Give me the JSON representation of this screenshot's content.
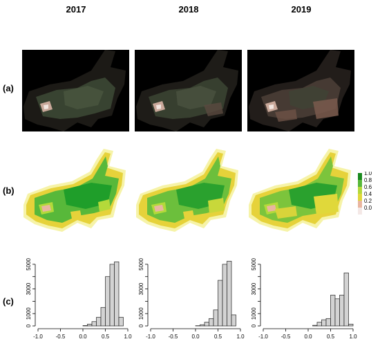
{
  "years": [
    "2017",
    "2018",
    "2019"
  ],
  "row_labels": {
    "a": "(a)",
    "b": "(b)",
    "c": "(c)"
  },
  "colors": {
    "rgb_dark": "#1c1a16",
    "rgb_veg": "#3c4834",
    "rgb_bare_2019": "#7a5a4e",
    "ndvi_high": "#1f9e2a",
    "ndvi_mid": "#9acd32",
    "ndvi_low": "#e6d23a",
    "ndvi_zero": "#e8c4b8",
    "hist_fill": "#d3d3d3"
  },
  "legend": {
    "labels": [
      "1.0",
      "0.8",
      "0.6",
      "0.4",
      "0.2",
      "0.0"
    ],
    "colors": [
      "#1a8a1e",
      "#58b83a",
      "#b4d93a",
      "#e0d83a",
      "#e9b6a0",
      "#f4e8e6"
    ]
  },
  "chart_data": [
    {
      "type": "bar",
      "year": "2017",
      "bin_edges": [
        0.0,
        0.1,
        0.2,
        0.3,
        0.4,
        0.5,
        0.6,
        0.7,
        0.8,
        0.9
      ],
      "values": [
        30,
        150,
        350,
        700,
        1500,
        4000,
        5000,
        5200,
        700
      ],
      "xlim": [
        -1.0,
        1.0
      ],
      "ylim": [
        0,
        5500
      ],
      "xticks": [
        "-1.0",
        "-0.5",
        "0.0",
        "0.5",
        "1.0"
      ],
      "yticks": [
        "0",
        "1000",
        "3000",
        "5000"
      ]
    },
    {
      "type": "bar",
      "year": "2018",
      "bin_edges": [
        0.0,
        0.1,
        0.2,
        0.3,
        0.4,
        0.5,
        0.6,
        0.7,
        0.8,
        0.9
      ],
      "values": [
        20,
        100,
        300,
        600,
        1300,
        3700,
        5000,
        5250,
        900
      ],
      "xlim": [
        -1.0,
        1.0
      ],
      "ylim": [
        0,
        5500
      ],
      "xticks": [
        "-1.0",
        "-0.5",
        "0.0",
        "0.5",
        "1.0"
      ],
      "yticks": [
        "0",
        "1000",
        "3000",
        "5000"
      ]
    },
    {
      "type": "bar",
      "year": "2019",
      "bin_edges": [
        0.1,
        0.2,
        0.3,
        0.4,
        0.5,
        0.6,
        0.7,
        0.8,
        0.9,
        1.0
      ],
      "values": [
        50,
        300,
        500,
        600,
        2500,
        2200,
        2500,
        4300,
        150
      ],
      "xlim": [
        -1.0,
        1.0
      ],
      "ylim": [
        0,
        5500
      ],
      "xticks": [
        "-1.0",
        "-0.5",
        "0.0",
        "0.5",
        "1.0"
      ],
      "yticks": [
        "0",
        "1000",
        "3000",
        "5000"
      ]
    }
  ]
}
